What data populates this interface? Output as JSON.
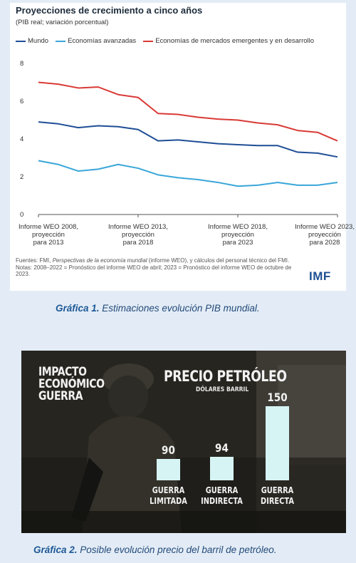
{
  "chart1": {
    "title": "Proyecciones de crecimiento a cinco años",
    "subtitle": "(PIB real; variación porcentual)",
    "colors": {
      "mundo": "#1f4e96",
      "avanzadas": "#3aa6d9",
      "emergentes": "#d93a36",
      "axis": "#555555"
    },
    "notes": {
      "source_prefix": "Fuentes: FMI, ",
      "source_title": "Perspectivas de la economía mundial",
      "source_suffix": " (informe WEO), y cálculos del personal técnico del FMI.",
      "notes_text": "Notas: 2008–2022 = Pronóstico del informe WEO de abril; 2023 = Pronóstico del informe WEO de octubre de 2023."
    },
    "logo": "IMF"
  },
  "chart_data": [
    {
      "type": "line",
      "title": "Proyecciones de crecimiento a cinco años",
      "subtitle": "(PIB real; variación porcentual)",
      "ylim": [
        0,
        8
      ],
      "yticks": [
        "0",
        "2",
        "4",
        "6",
        "8"
      ],
      "x": [
        2008,
        2009,
        2010,
        2011,
        2012,
        2013,
        2014,
        2015,
        2016,
        2017,
        2018,
        2019,
        2020,
        2021,
        2022,
        2023
      ],
      "x_tick_labels": [
        [
          "Informe WEO 2008,",
          "proyección",
          "para 2013"
        ],
        [
          "Informe WEO 2013,",
          "proyección",
          "para 2018"
        ],
        [
          "Informe WEO 2018,",
          "proyección",
          "para 2023"
        ],
        [
          "Informe WEO 2023,",
          "proyección",
          "para 2028"
        ]
      ],
      "legend": "top",
      "series": [
        {
          "name": "Mundo",
          "values": [
            4.9,
            4.8,
            4.6,
            4.7,
            4.65,
            4.5,
            3.9,
            3.95,
            3.85,
            3.75,
            3.7,
            3.65,
            3.65,
            3.3,
            3.25,
            3.05
          ]
        },
        {
          "name": "Economías avanzadas",
          "values": [
            2.85,
            2.65,
            2.3,
            2.4,
            2.65,
            2.45,
            2.1,
            1.95,
            1.85,
            1.7,
            1.5,
            1.55,
            1.7,
            1.55,
            1.55,
            1.7
          ]
        },
        {
          "name": "Economías de mercados emergentes y en desarrollo",
          "values": [
            7.0,
            6.9,
            6.7,
            6.75,
            6.35,
            6.2,
            5.35,
            5.3,
            5.15,
            5.05,
            5.0,
            4.85,
            4.75,
            4.45,
            4.35,
            3.9
          ]
        }
      ]
    },
    {
      "type": "bar",
      "title": "PRECIO PETRÓLEO",
      "subtitle": "DÓLARES BARRIL",
      "categories": [
        [
          "GUERRA",
          "LIMITADA"
        ],
        [
          "GUERRA",
          "INDIRECTA"
        ],
        [
          "GUERRA",
          "DIRECTA"
        ]
      ],
      "values": [
        90,
        94,
        150
      ]
    }
  ],
  "chart2": {
    "left_title": [
      "IMPACTO",
      "ECONÓMICO",
      "GUERRA"
    ],
    "bar_color": "#d6f4f4",
    "text_color": "#f2f2f2"
  },
  "captions": {
    "fig1_label": "Gráfica 1.",
    "fig1_text": " Estimaciones evolución PIB mundial.",
    "fig2_label": "Gráfica 2.",
    "fig2_text": " Posible evolución precio del barril de petróleo."
  }
}
